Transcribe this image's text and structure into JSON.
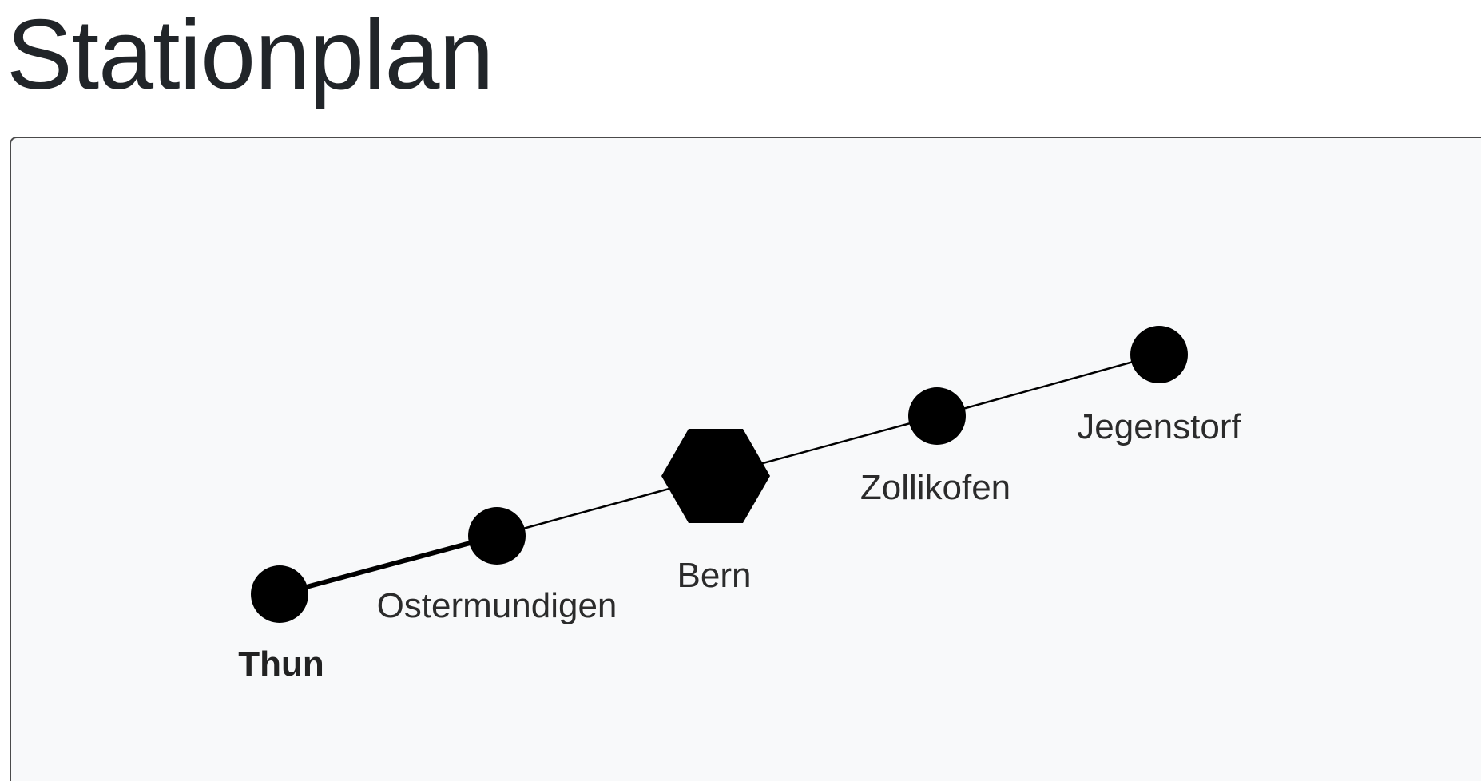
{
  "page": {
    "title": "Stationplan"
  },
  "map": {
    "line_color": "#000000",
    "node_color": "#000000",
    "background": "#f8f9fa",
    "stations": [
      {
        "id": "thun",
        "label": "Thun",
        "kind": "circle",
        "bold": true
      },
      {
        "id": "ostermundigen",
        "label": "Ostermundigen",
        "kind": "circle",
        "bold": false
      },
      {
        "id": "bern",
        "label": "Bern",
        "kind": "hexagon",
        "bold": false
      },
      {
        "id": "zollikofen",
        "label": "Zollikofen",
        "kind": "circle",
        "bold": false
      },
      {
        "id": "jegenstorf",
        "label": "Jegenstorf",
        "kind": "circle",
        "bold": false
      }
    ]
  }
}
